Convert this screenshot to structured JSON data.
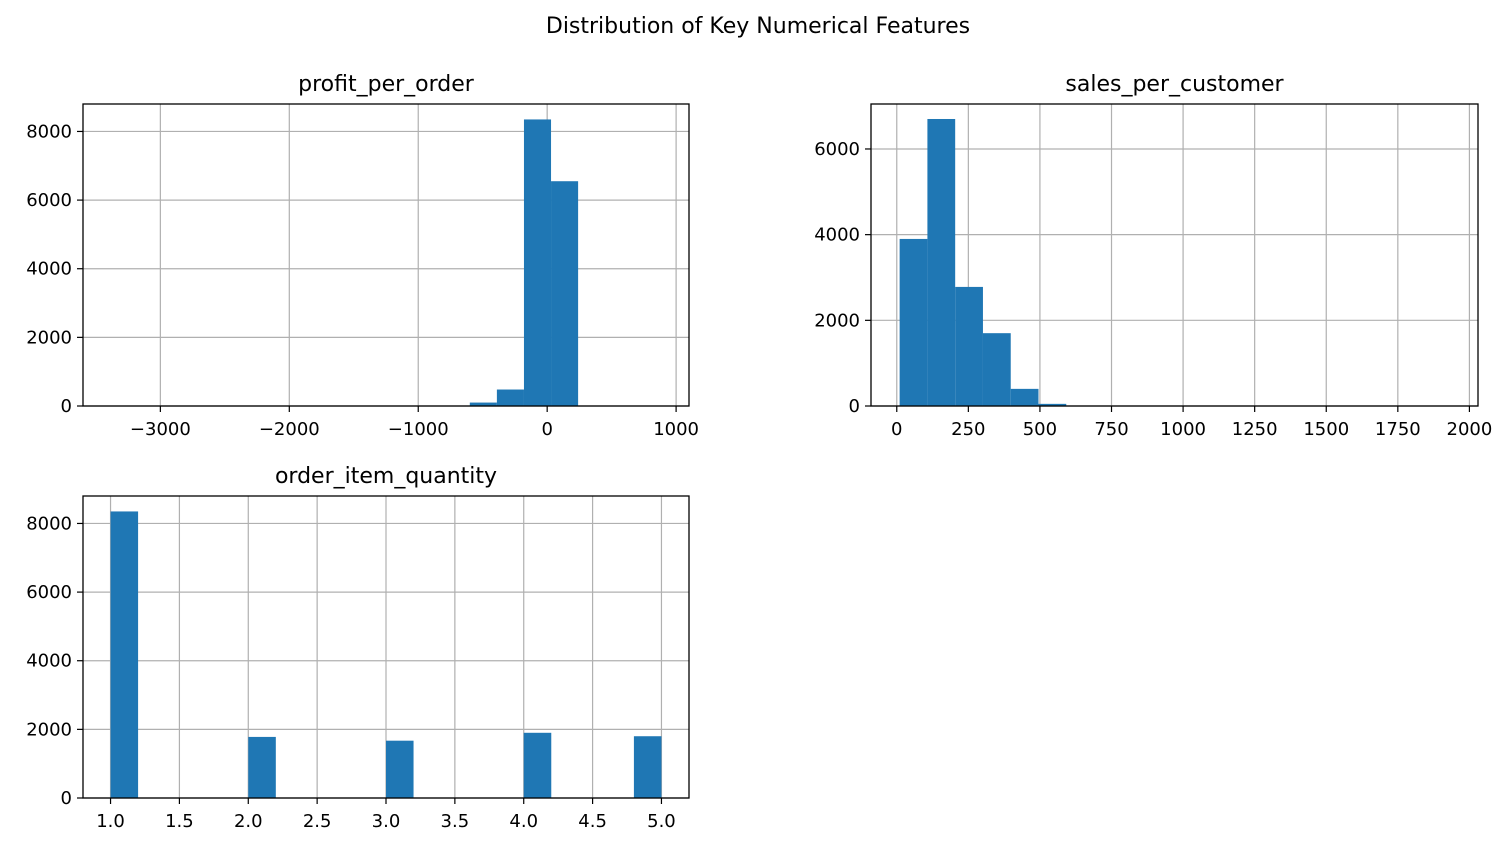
{
  "figure": {
    "title": "Distribution of Key Numerical Features"
  },
  "style": {
    "bar_color": "#1f77b4",
    "grid_color": "#b0b0b0",
    "axis_color": "#000000"
  },
  "chart_data": [
    {
      "type": "bar",
      "title": "profit_per_order",
      "xlabel": "",
      "ylabel": "",
      "grid": true,
      "xlim": [
        -3600,
        1100
      ],
      "ylim": [
        0,
        8800
      ],
      "xticks": [
        -3000,
        -2000,
        -1000,
        0,
        1000
      ],
      "xtick_labels": [
        "−3000",
        "−2000",
        "−1000",
        "0",
        "1000"
      ],
      "yticks": [
        0,
        2000,
        4000,
        6000,
        8000
      ],
      "ytick_labels": [
        "0",
        "2000",
        "4000",
        "6000",
        "8000"
      ],
      "bins": [
        {
          "x0": -600,
          "x1": -390,
          "value": 100
        },
        {
          "x0": -390,
          "x1": -180,
          "value": 480
        },
        {
          "x0": -180,
          "x1": 30,
          "value": 8350
        },
        {
          "x0": 30,
          "x1": 240,
          "value": 6550
        }
      ]
    },
    {
      "type": "bar",
      "title": "sales_per_customer",
      "xlabel": "",
      "ylabel": "",
      "grid": true,
      "xlim": [
        -90,
        2030
      ],
      "ylim": [
        0,
        7050
      ],
      "xticks": [
        0,
        250,
        500,
        750,
        1000,
        1250,
        1500,
        1750,
        2000
      ],
      "xtick_labels": [
        "0",
        "250",
        "500",
        "750",
        "1000",
        "1250",
        "1500",
        "1750",
        "2000"
      ],
      "yticks": [
        0,
        2000,
        4000,
        6000
      ],
      "ytick_labels": [
        "0",
        "2000",
        "4000",
        "6000"
      ],
      "bins": [
        {
          "x0": 10,
          "x1": 107,
          "value": 3900
        },
        {
          "x0": 107,
          "x1": 204,
          "value": 6700
        },
        {
          "x0": 204,
          "x1": 301,
          "value": 2780
        },
        {
          "x0": 301,
          "x1": 398,
          "value": 1700
        },
        {
          "x0": 398,
          "x1": 495,
          "value": 400
        },
        {
          "x0": 495,
          "x1": 592,
          "value": 50
        }
      ]
    },
    {
      "type": "bar",
      "title": "order_item_quantity",
      "xlabel": "",
      "ylabel": "",
      "grid": true,
      "xlim": [
        0.8,
        5.2
      ],
      "ylim": [
        0,
        8800
      ],
      "xticks": [
        1.0,
        1.5,
        2.0,
        2.5,
        3.0,
        3.5,
        4.0,
        4.5,
        5.0
      ],
      "xtick_labels": [
        "1.0",
        "1.5",
        "2.0",
        "2.5",
        "3.0",
        "3.5",
        "4.0",
        "4.5",
        "5.0"
      ],
      "yticks": [
        0,
        2000,
        4000,
        6000,
        8000
      ],
      "ytick_labels": [
        "0",
        "2000",
        "4000",
        "6000",
        "8000"
      ],
      "bins": [
        {
          "x0": 1.0,
          "x1": 1.2,
          "value": 8350
        },
        {
          "x0": 2.0,
          "x1": 2.2,
          "value": 1780
        },
        {
          "x0": 3.0,
          "x1": 3.2,
          "value": 1670
        },
        {
          "x0": 4.0,
          "x1": 4.2,
          "value": 1900
        },
        {
          "x0": 4.8,
          "x1": 5.0,
          "value": 1800
        }
      ]
    }
  ]
}
